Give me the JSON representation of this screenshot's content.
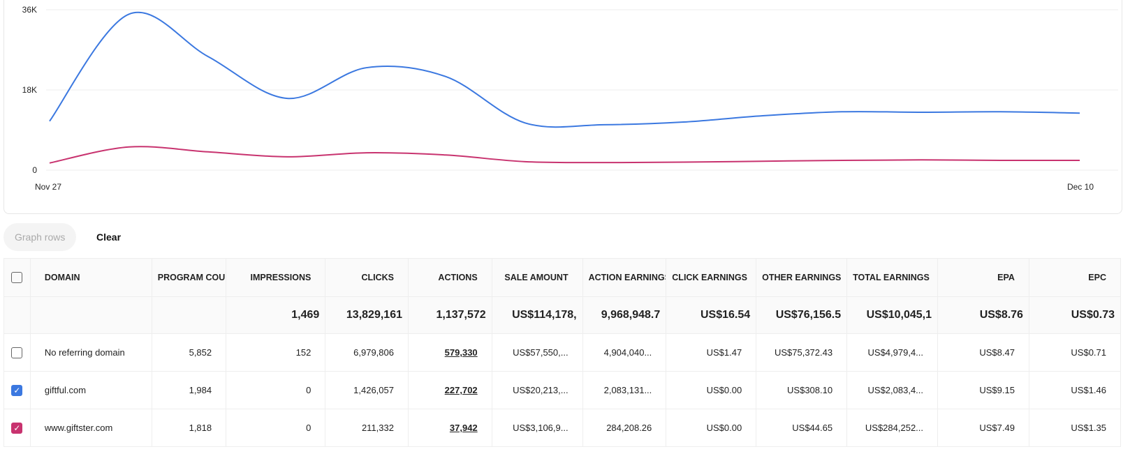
{
  "chart_data": {
    "type": "line",
    "x": [
      0,
      1,
      2,
      3,
      4,
      5,
      6,
      7,
      8,
      9,
      10,
      11,
      12,
      13
    ],
    "x_tick_labels": [
      "Nov 27",
      "Dec 10"
    ],
    "y_tick_labels": [
      "36K",
      "18K",
      "0"
    ],
    "ylim": [
      0,
      36000
    ],
    "grid": true,
    "series": [
      {
        "name": "giftful.com",
        "color": "#3b78e0",
        "values": [
          11000,
          35000,
          25500,
          16100,
          23000,
          21000,
          10600,
          10200,
          10800,
          12200,
          13100,
          13000,
          13100,
          12800
        ]
      },
      {
        "name": "www.giftster.com",
        "color": "#c8336f",
        "values": [
          1600,
          5200,
          4100,
          3000,
          3900,
          3400,
          1900,
          1700,
          1800,
          2000,
          2200,
          2300,
          2200,
          2200
        ]
      }
    ]
  },
  "controls": {
    "graph_rows": "Graph rows",
    "clear": "Clear"
  },
  "table": {
    "headers": [
      "DOMAIN",
      "PROGRAM COUNT",
      "IMPRESSIONS",
      "CLICKS",
      "ACTIONS",
      "SALE AMOUNT",
      "ACTION EARNINGS",
      "CLICK EARNINGS",
      "OTHER EARNINGS",
      "TOTAL EARNINGS",
      "EPA",
      "EPC"
    ],
    "totals": [
      "",
      "",
      "1,469",
      "13,829,161",
      "1,137,572",
      "US$114,178,",
      "9,968,948.7",
      "US$16.54",
      "US$76,156.5",
      "US$10,045,1",
      "US$8.76",
      "US$0.73"
    ],
    "rows": [
      {
        "checked": false,
        "color": "",
        "cells": [
          "No referring domain",
          "5,852",
          "152",
          "6,979,806",
          "579,330",
          "US$57,550,...",
          "4,904,040...",
          "US$1.47",
          "US$75,372.43",
          "US$4,979,4...",
          "US$8.47",
          "US$0.71"
        ]
      },
      {
        "checked": true,
        "color": "#3b78e0",
        "cells": [
          "giftful.com",
          "1,984",
          "0",
          "1,426,057",
          "227,702",
          "US$20,213,...",
          "2,083,131...",
          "US$0.00",
          "US$308.10",
          "US$2,083,4...",
          "US$9.15",
          "US$1.46"
        ]
      },
      {
        "checked": true,
        "color": "#c8336f",
        "cells": [
          "www.giftster.com",
          "1,818",
          "0",
          "211,332",
          "37,942",
          "US$3,106,9...",
          "284,208.26",
          "US$0.00",
          "US$44.65",
          "US$284,252...",
          "US$7.49",
          "US$1.35"
        ]
      }
    ]
  }
}
